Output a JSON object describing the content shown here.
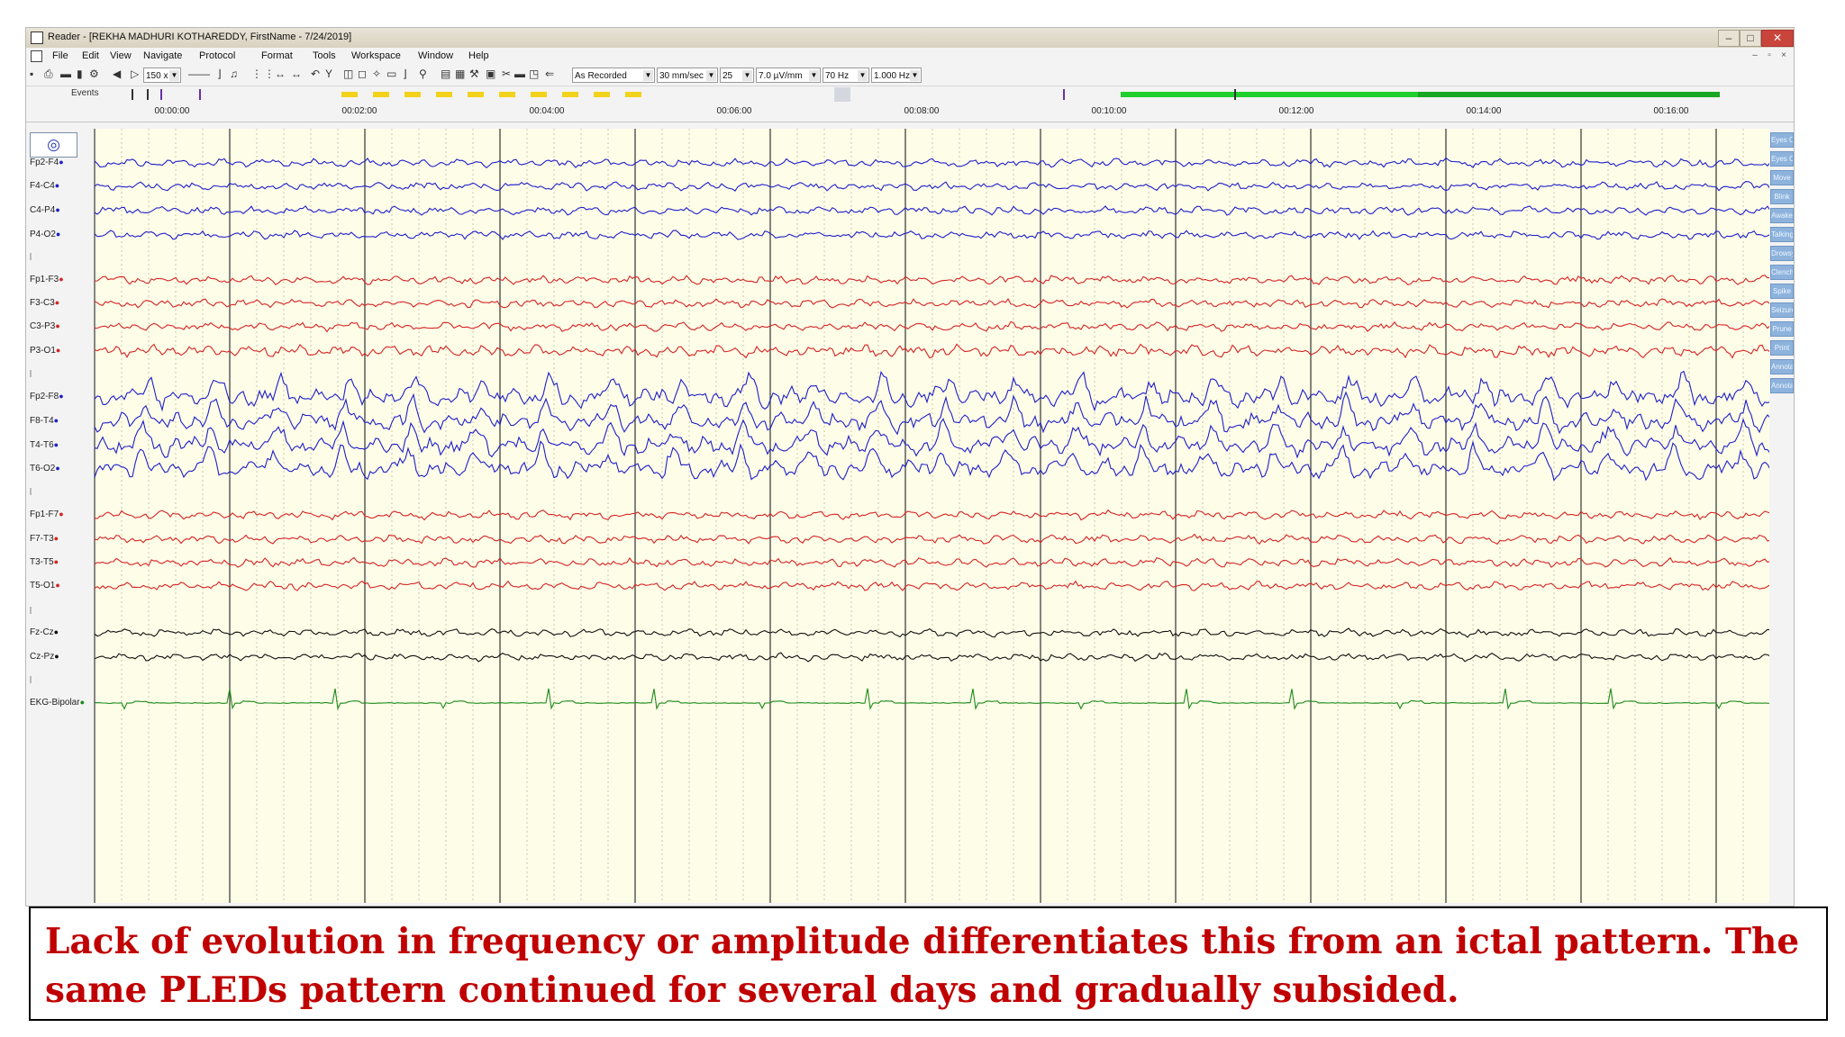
{
  "window": {
    "title": "Reader - [REKHA MADHURI KOTHAREDDY, FirstName - 7/24/2019]"
  },
  "menu": [
    "File",
    "Edit",
    "View",
    "Navigate",
    "Protocol",
    "Format",
    "Tools",
    "Workspace",
    "Window",
    "Help"
  ],
  "toolbar": {
    "zoom": "150 x",
    "reference": "As Recorded",
    "paper_speed": "30 mm/sec",
    "page_value": "25",
    "sensitivity": "7.0 µV/mm",
    "high_filter": "70 Hz",
    "low_filter": "1.000 Hz"
  },
  "events_label": "Events",
  "timeline": [
    "00:00:00",
    "00:02:00",
    "00:04:00",
    "00:06:00",
    "00:08:00",
    "00:10:00",
    "00:12:00",
    "00:14:00",
    "00:16:00"
  ],
  "channels": [
    {
      "label": "Fp2-F4",
      "color": "#1f1fc8"
    },
    {
      "label": "F4-C4",
      "color": "#1f1fc8"
    },
    {
      "label": "C4-P4",
      "color": "#1f1fc8"
    },
    {
      "label": "P4-O2",
      "color": "#1f1fc8"
    },
    {
      "label": "Fp1-F3",
      "color": "#d42424"
    },
    {
      "label": "F3-C3",
      "color": "#d42424"
    },
    {
      "label": "C3-P3",
      "color": "#d42424"
    },
    {
      "label": "P3-O1",
      "color": "#d42424"
    },
    {
      "label": "Fp2-F8",
      "color": "#1f1fc8"
    },
    {
      "label": "F8-T4",
      "color": "#1f1fc8"
    },
    {
      "label": "T4-T6",
      "color": "#1f1fc8"
    },
    {
      "label": "T6-O2",
      "color": "#1f1fc8"
    },
    {
      "label": "Fp1-F7",
      "color": "#d42424"
    },
    {
      "label": "F7-T3",
      "color": "#d42424"
    },
    {
      "label": "T3-T5",
      "color": "#d42424"
    },
    {
      "label": "T5-O1",
      "color": "#d42424"
    },
    {
      "label": "Fz-Cz",
      "color": "#111111"
    },
    {
      "label": "Cz-Pz",
      "color": "#111111"
    },
    {
      "label": "EKG-Bipolar",
      "color": "#1c8a1c"
    }
  ],
  "event_buttons": [
    "Eyes Ope",
    "Eyes Clo",
    "Move",
    "Blink",
    "Awake",
    "Talking",
    "Drowsy",
    "Clench F",
    "Spike",
    "Seizure",
    "Prune",
    "Print",
    "Annotati",
    "Annotati"
  ],
  "caption": "Lack of evolution in frequency or amplitude differentiates this from an ictal pattern. The same PLEDs pattern continued for several days and gradually subsided."
}
